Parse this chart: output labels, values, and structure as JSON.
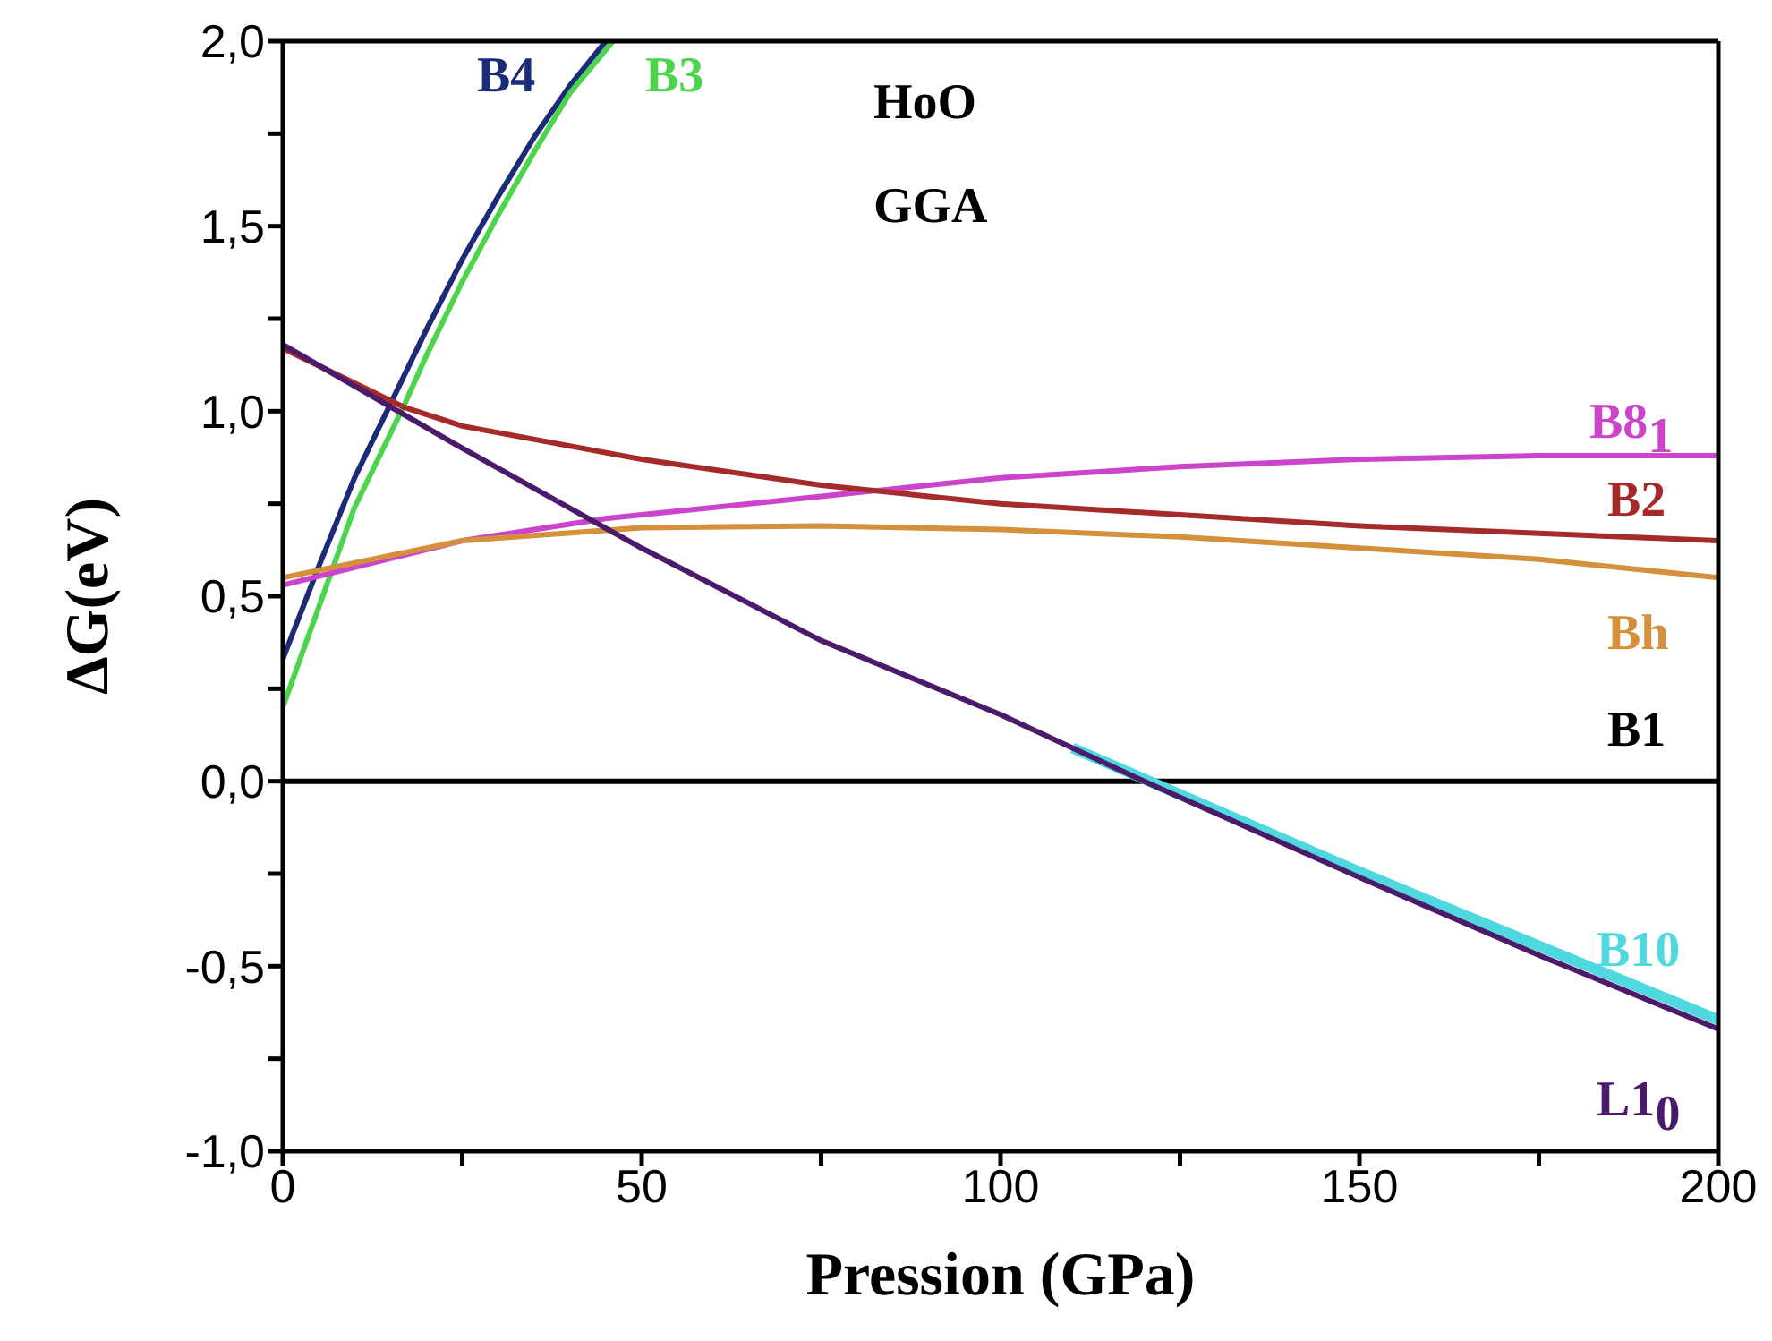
{
  "chart_data": {
    "type": "line",
    "xlabel": "Pression (GPa)",
    "ylabel": "ΔG(eV)",
    "annotations": [
      "HoO",
      "GGA"
    ],
    "xlim": [
      0,
      200
    ],
    "xticks": [
      0,
      {
        "value": 25,
        "label": null
      },
      50,
      {
        "value": 75,
        "label": null
      },
      100,
      {
        "value": 125,
        "label": null
      },
      150,
      {
        "value": 175,
        "label": null
      },
      200
    ],
    "ylim": [
      -1,
      2
    ],
    "yticks": [
      {
        "value": -1,
        "label": "-1,0"
      },
      {
        "value": -0.75,
        "label": null
      },
      {
        "value": -0.5,
        "label": "-0,5"
      },
      {
        "value": -0.25,
        "label": null
      },
      {
        "value": 0,
        "label": "0,0"
      },
      {
        "value": 0.25,
        "label": null
      },
      {
        "value": 0.5,
        "label": "0,5"
      },
      {
        "value": 0.75,
        "label": null
      },
      {
        "value": 1,
        "label": "1,0"
      },
      {
        "value": 1.25,
        "label": null
      },
      {
        "value": 1.5,
        "label": "1,5"
      },
      {
        "value": 1.75,
        "label": null
      },
      {
        "value": 2,
        "label": "2,0"
      }
    ],
    "series": [
      {
        "name": "B4",
        "color": "#1c2a7a",
        "x": [
          0,
          5,
          10,
          15,
          20,
          25,
          30,
          35,
          40,
          45
        ],
        "values": [
          0.33,
          0.58,
          0.82,
          1.02,
          1.22,
          1.41,
          1.58,
          1.74,
          1.88,
          2.0
        ]
      },
      {
        "name": "B3",
        "color": "#4cd44c",
        "x": [
          0,
          5,
          10,
          17,
          20,
          25,
          30,
          35,
          40,
          46
        ],
        "values": [
          0.2,
          0.47,
          0.74,
          1.02,
          1.15,
          1.35,
          1.53,
          1.7,
          1.86,
          2.0
        ]
      },
      {
        "name": "B8$_{1}$",
        "color": "#cc44cc",
        "x": [
          0,
          25,
          45,
          50,
          75,
          85,
          100,
          125,
          150,
          175,
          200
        ],
        "values": [
          0.53,
          0.65,
          0.71,
          0.72,
          0.77,
          0.79,
          0.82,
          0.85,
          0.87,
          0.88,
          0.88
        ]
      },
      {
        "name": "B2",
        "color": "#a52a2a",
        "x": [
          0,
          17,
          25,
          50,
          75,
          100,
          125,
          150,
          175,
          200
        ],
        "values": [
          1.17,
          1.01,
          0.96,
          0.87,
          0.8,
          0.75,
          0.72,
          0.69,
          0.67,
          0.65
        ]
      },
      {
        "name": "Bh",
        "color": "#d4903a",
        "x": [
          0,
          25,
          50,
          75,
          100,
          125,
          150,
          175,
          200
        ],
        "values": [
          0.55,
          0.65,
          0.685,
          0.69,
          0.68,
          0.66,
          0.63,
          0.6,
          0.55
        ]
      },
      {
        "name": "B1",
        "color": "#000000",
        "x": [
          0,
          200
        ],
        "values": [
          0,
          0
        ]
      },
      {
        "name": "B10",
        "color": "#4fd8e0",
        "x": [
          110,
          150,
          175,
          200
        ],
        "values": [
          0.09,
          -0.245,
          -0.445,
          -0.645
        ]
      },
      {
        "name": "L1$_{0}$",
        "color": "#4b1a6b",
        "x": [
          0,
          25,
          50,
          75,
          100,
          120,
          150,
          175,
          200
        ],
        "values": [
          1.18,
          0.9,
          0.63,
          0.38,
          0.18,
          0.0,
          -0.26,
          -0.47,
          -0.67
        ]
      }
    ]
  }
}
